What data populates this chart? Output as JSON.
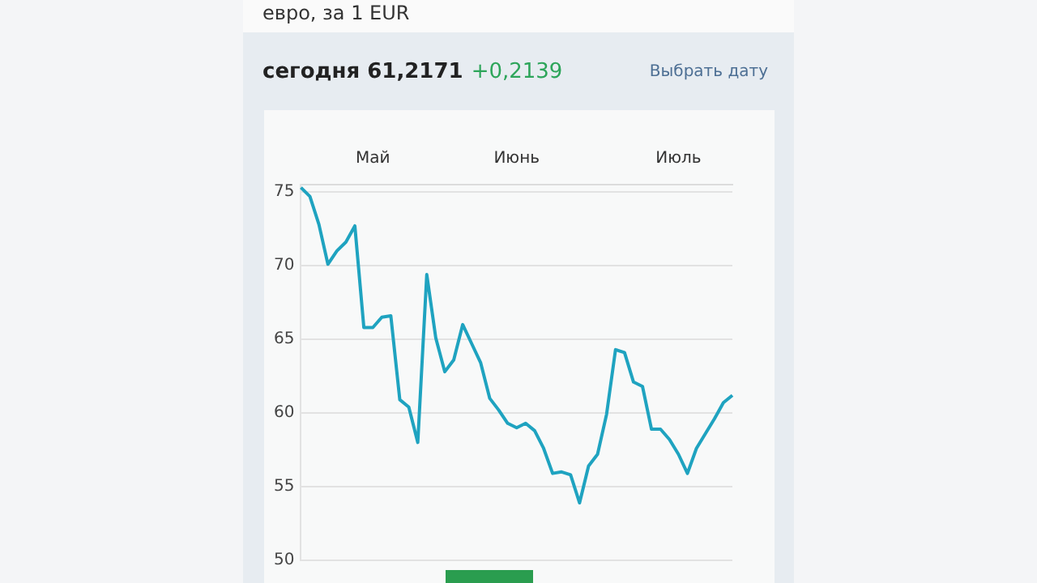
{
  "chart_data": {
    "type": "line",
    "subtitle": "евро, за 1 EUR",
    "title": "сегодня 61,2171",
    "annotations": [
      "+0,2139",
      "Выбрать дату"
    ],
    "categories": [
      null,
      null,
      null,
      null,
      null,
      null,
      null,
      null,
      "Май",
      null,
      null,
      null,
      null,
      null,
      null,
      null,
      null,
      null,
      null,
      null,
      null,
      null,
      null,
      null,
      "Июнь",
      null,
      null,
      null,
      null,
      null,
      null,
      null,
      null,
      null,
      null,
      null,
      null,
      null,
      null,
      null,
      null,
      null,
      "Июль",
      null,
      null,
      null,
      null,
      null,
      null
    ],
    "series": [
      {
        "color": "#1fa3c0",
        "values": [
          75.3,
          74.7,
          72.8,
          70.1,
          71.0,
          71.6,
          72.7,
          65.8,
          65.8,
          66.5,
          66.6,
          60.9,
          60.4,
          58.0,
          69.4,
          65.1,
          62.8,
          63.6,
          66.0,
          64.7,
          63.4,
          61.0,
          60.2,
          59.3,
          59.0,
          59.3,
          58.8,
          57.6,
          55.9,
          56.0,
          55.8,
          53.9,
          56.4,
          57.2,
          59.9,
          64.3,
          64.1,
          62.1,
          61.8,
          58.9,
          58.9,
          58.2,
          57.2,
          55.9,
          57.6,
          58.6,
          59.6,
          60.7,
          61.2
        ]
      }
    ],
    "ylim": [
      50,
      75.5
    ],
    "yticks": [
      50,
      55,
      60,
      65,
      70,
      75
    ],
    "grid": "y",
    "marker": "none",
    "line_style": "solid"
  }
}
